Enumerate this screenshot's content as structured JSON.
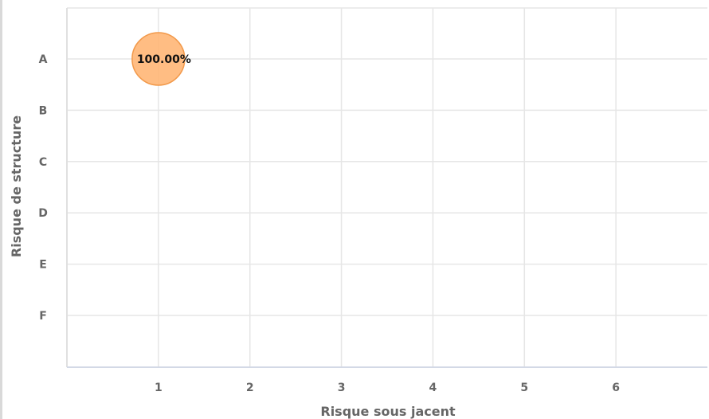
{
  "chart_data": {
    "type": "scatter",
    "subtype": "bubble",
    "title": "",
    "xlabel": "Risque sous jacent",
    "ylabel": "Risque de structure",
    "x_ticks": [
      "1",
      "2",
      "3",
      "4",
      "5",
      "6"
    ],
    "y_categories": [
      "A",
      "B",
      "C",
      "D",
      "E",
      "F"
    ],
    "xlim": [
      0,
      7
    ],
    "grid": true,
    "legend": "none",
    "series": [
      {
        "color": "#FFB675",
        "stroke": "#F2994A",
        "points": [
          {
            "x": 1,
            "y": "A",
            "value": 100,
            "label": "100.00%"
          }
        ]
      }
    ]
  }
}
